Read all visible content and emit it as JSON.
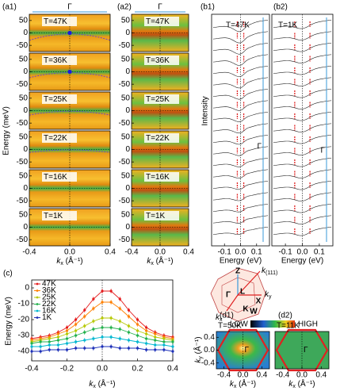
{
  "panel_a": {
    "labels": [
      "(a1)",
      "(a2)"
    ],
    "temperatures": [
      "T=47K",
      "T=36K",
      "T=25K",
      "T=22K",
      "T=16K",
      "T=1K"
    ],
    "gamma": "Γ",
    "y_label": "Energy (meV)",
    "ylim": [
      -75,
      75
    ],
    "yticks": [
      50,
      0,
      -50
    ],
    "xlim": [
      -0.4,
      0.4
    ],
    "xticks": [
      -0.4,
      {
        "value": 0,
        "label": "0.0"
      },
      0.4
    ],
    "x_label": {
      "k": "k",
      "sub": "x",
      "unit": " (Å⁻¹)"
    }
  },
  "panel_b": {
    "labels": [
      "(b1)",
      "(b2)"
    ],
    "temperatures": [
      "T=47K",
      "T=1K"
    ],
    "gamma": "Γ",
    "y_label": "Intensity",
    "x_label": "Energy (eV)",
    "xlim": [
      -0.18,
      0.18
    ],
    "xticks": [
      -0.1,
      {
        "value": 0,
        "label": "0.0"
      },
      0.1
    ]
  },
  "chart_data": {
    "type": "line",
    "label": "(c)",
    "y_label": "Energy (meV)",
    "x_label": {
      "k": "k",
      "sub": "x",
      "unit": " (Å⁻¹)"
    },
    "xlim": [
      -0.4,
      0.4
    ],
    "xticks": [
      -0.4,
      -0.2,
      {
        "value": 0,
        "label": "0.0"
      },
      0.2,
      0.4
    ],
    "ylim": [
      -46,
      5
    ],
    "yticks": [
      -40,
      -30,
      -20,
      -10,
      0
    ],
    "x": [
      -0.4,
      -0.35,
      -0.3,
      -0.25,
      -0.2,
      -0.15,
      -0.1,
      -0.05,
      0,
      0.05,
      0.1,
      0.15,
      0.2,
      0.25,
      0.3,
      0.35,
      0.4
    ],
    "series": [
      {
        "name": "47K",
        "color": "#e41a1c",
        "values": [
          -32,
          -31,
          -30,
          -28,
          -25,
          -20,
          -14,
          -7,
          -2,
          -2,
          -7,
          -14,
          -20,
          -25,
          -28,
          -30,
          -31
        ]
      },
      {
        "name": "36K",
        "color": "#ff7f00",
        "values": [
          -33,
          -32,
          -31,
          -29,
          -27,
          -23,
          -18,
          -13,
          -9,
          -9,
          -13,
          -18,
          -23,
          -27,
          -29,
          -31,
          -32
        ]
      },
      {
        "name": "25K",
        "color": "#b5c800",
        "values": [
          -34,
          -33,
          -32,
          -31,
          -29,
          -27,
          -24,
          -21,
          -19,
          -19,
          -21,
          -24,
          -27,
          -29,
          -31,
          -32,
          -33
        ]
      },
      {
        "name": "22K",
        "color": "#22b14c",
        "values": [
          -35,
          -34,
          -34,
          -33,
          -32,
          -30,
          -28,
          -26,
          -25,
          -25,
          -26,
          -28,
          -30,
          -32,
          -33,
          -34,
          -34
        ]
      },
      {
        "name": "16K",
        "color": "#00b7d0",
        "values": [
          -37,
          -37,
          -36,
          -36,
          -35,
          -34,
          -33,
          -32,
          -31,
          -31,
          -32,
          -33,
          -34,
          -35,
          -36,
          -36,
          -37
        ]
      },
      {
        "name": "1K",
        "color": "#1c2fb8",
        "values": [
          -40,
          -40,
          -39,
          -39,
          -39,
          -38,
          -38,
          -38,
          -37,
          -37,
          -38,
          -38,
          -38,
          -39,
          -39,
          -39,
          -40
        ]
      }
    ]
  },
  "bz": {
    "labels": [
      "Z",
      "Γ",
      "L",
      "X",
      "K",
      "W"
    ],
    "k111": {
      "k": "k",
      "sub": "(111)"
    },
    "kx": {
      "k": "k",
      "sub": "x"
    },
    "ky": {
      "k": "k",
      "sub": "y"
    }
  },
  "colorbar": {
    "low": "LOW",
    "high": "HIGH"
  },
  "panel_d": {
    "labels": [
      "(d1)",
      "(d2)"
    ],
    "temperatures": [
      "T=50K",
      "T=11K"
    ],
    "gamma": "Γ",
    "xlim": [
      -0.56,
      0.56
    ],
    "xticks": [
      -0.4,
      {
        "value": 0,
        "label": "0.0"
      },
      0.4
    ],
    "ylim": [
      -0.58,
      0.58
    ],
    "yticks": [
      0.4,
      {
        "value": 0,
        "label": "0.0"
      },
      -0.4
    ],
    "x_label": {
      "k": "k",
      "sub": "x",
      "unit": " (Å⁻¹)"
    },
    "y_label": {
      "k": "k",
      "sub": "y",
      "unit": " (Å⁻¹)"
    }
  }
}
